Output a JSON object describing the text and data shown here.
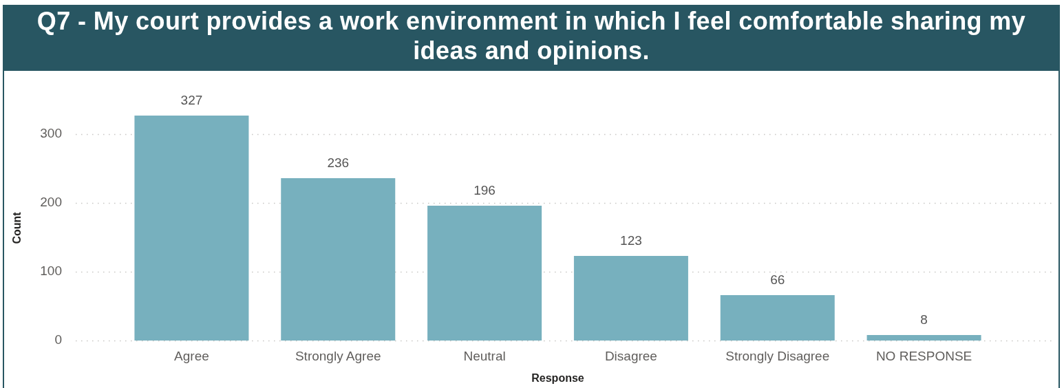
{
  "chart_data": {
    "type": "bar",
    "title": "Q7 - My court provides a work environment in which I feel comfortable sharing my ideas and opinions.",
    "xlabel": "Response",
    "ylabel": "Count",
    "categories": [
      "Agree",
      "Strongly Agree",
      "Neutral",
      "Disagree",
      "Strongly Disagree",
      "NO RESPONSE"
    ],
    "values": [
      327,
      236,
      196,
      123,
      66,
      8
    ],
    "color": "#77b0be",
    "ylim": [
      0,
      327
    ],
    "yticks": [
      0,
      100,
      200,
      300
    ],
    "grid": "y",
    "data_labels": true
  }
}
